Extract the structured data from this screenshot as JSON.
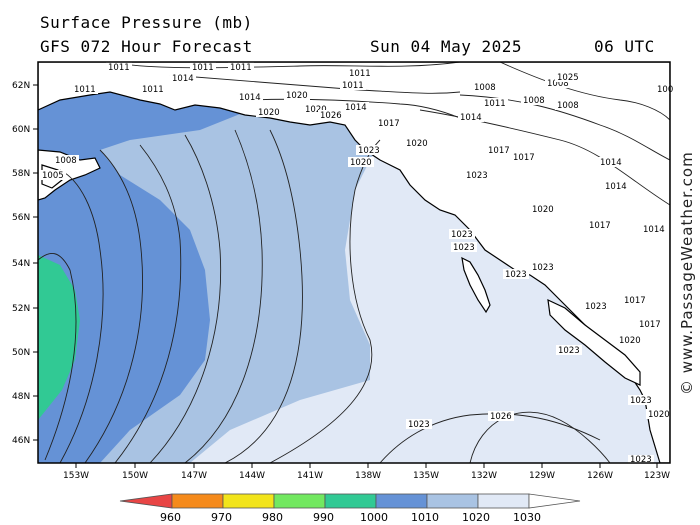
{
  "header": {
    "title": "Surface Pressure (mb)",
    "model": "GFS 072 Hour Forecast",
    "date": "Sun 04 May 2025",
    "time": "06 UTC"
  },
  "watermark": "© www.PassageWeather.com",
  "map": {
    "region": "Gulf of Alaska and British Columbia coast",
    "lat_labels": [
      "62N",
      "60N",
      "58N",
      "56N",
      "54N",
      "52N",
      "50N",
      "48N",
      "46N"
    ],
    "lon_labels": [
      "153W",
      "150W",
      "147W",
      "144W",
      "141W",
      "138W",
      "135W",
      "132W",
      "129W",
      "126W",
      "123W"
    ],
    "colors": {
      "land": "#ffffff",
      "coast": "#000000",
      "band_960": "#e84545",
      "band_970": "#f58a1b",
      "band_980": "#f2e41a",
      "band_990": "#72e860",
      "band_1000": "#31c994",
      "band_1010": "#6592d6",
      "band_1020": "#a9c3e3",
      "band_1030": "#e1e9f6"
    },
    "isobar_labels": [
      {
        "text": "1011"
      },
      {
        "text": "1011"
      },
      {
        "text": "1011"
      },
      {
        "text": "1011"
      },
      {
        "text": "1011"
      },
      {
        "text": "1011"
      },
      {
        "text": "1011"
      },
      {
        "text": "1011"
      },
      {
        "text": "1014"
      },
      {
        "text": "1014"
      },
      {
        "text": "1014"
      },
      {
        "text": "1014"
      },
      {
        "text": "1014"
      },
      {
        "text": "1014"
      },
      {
        "text": "1014"
      },
      {
        "text": "1017"
      },
      {
        "text": "1017"
      },
      {
        "text": "1017"
      },
      {
        "text": "1017"
      },
      {
        "text": "1017"
      },
      {
        "text": "1017"
      },
      {
        "text": "1020"
      },
      {
        "text": "1020"
      },
      {
        "text": "1020"
      },
      {
        "text": "1020"
      },
      {
        "text": "1020"
      },
      {
        "text": "1020"
      },
      {
        "text": "1020"
      },
      {
        "text": "1020"
      },
      {
        "text": "1023"
      },
      {
        "text": "1023"
      },
      {
        "text": "1023"
      },
      {
        "text": "1023"
      },
      {
        "text": "1023"
      },
      {
        "text": "1023"
      },
      {
        "text": "1023"
      },
      {
        "text": "1023"
      },
      {
        "text": "1023"
      },
      {
        "text": "1023"
      },
      {
        "text": "1023"
      },
      {
        "text": "1026"
      },
      {
        "text": "1026"
      },
      {
        "text": "1008"
      },
      {
        "text": "1008"
      },
      {
        "text": "1008"
      },
      {
        "text": "1008"
      },
      {
        "text": "1008"
      },
      {
        "text": "1005"
      },
      {
        "text": "1025"
      },
      {
        "text": "100"
      }
    ]
  },
  "colorbar": {
    "labels": [
      "960",
      "970",
      "980",
      "990",
      "1000",
      "1010",
      "1020",
      "1030"
    ],
    "colors": [
      "#e84545",
      "#f58a1b",
      "#f2e41a",
      "#72e860",
      "#31c994",
      "#6592d6",
      "#a9c3e3",
      "#e1e9f6"
    ]
  }
}
